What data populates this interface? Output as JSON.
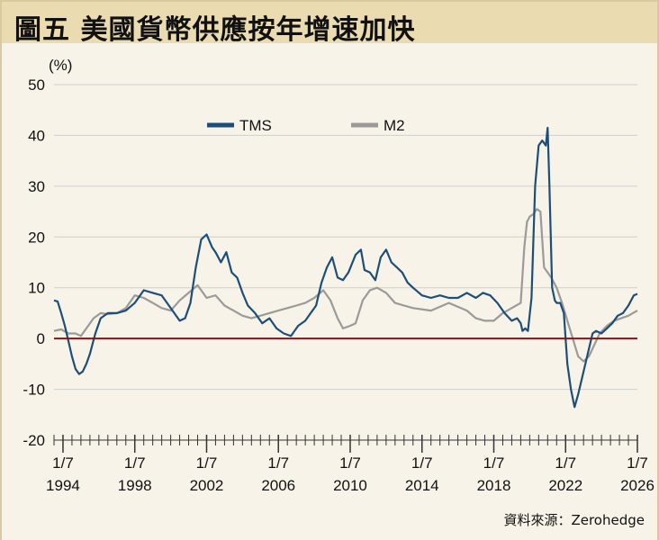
{
  "title": "圖五 美國貨幣供應按年增速加快",
  "unit_label": "(%)",
  "source": "資料來源：Zerohedge",
  "colors": {
    "tms": "#1d4e79",
    "m2": "#9a9a9a",
    "zero_line": "#7a1a1a",
    "background": "#f7f3e8",
    "title_bg": "#eadcb0"
  },
  "chart_data": {
    "type": "line",
    "ylabel": "(%)",
    "ylim": [
      -20,
      50
    ],
    "yticks": [
      -20,
      -10,
      0,
      10,
      20,
      30,
      40,
      50
    ],
    "xlim": [
      1994.0,
      2026.5
    ],
    "xtick_labels": [
      {
        "x": 1994.5,
        "top": "1/7",
        "bottom": "1994"
      },
      {
        "x": 1998.5,
        "top": "1/7",
        "bottom": "1998"
      },
      {
        "x": 2002.5,
        "top": "1/7",
        "bottom": "2002"
      },
      {
        "x": 2006.5,
        "top": "1/7",
        "bottom": "2006"
      },
      {
        "x": 2010.5,
        "top": "1/7",
        "bottom": "2010"
      },
      {
        "x": 2014.5,
        "top": "1/7",
        "bottom": "2014"
      },
      {
        "x": 2018.5,
        "top": "1/7",
        "bottom": "2018"
      },
      {
        "x": 2022.5,
        "top": "1/7",
        "bottom": "2022"
      },
      {
        "x": 2026.5,
        "top": "1/7",
        "bottom": "2026"
      }
    ],
    "legend": [
      "TMS",
      "M2"
    ],
    "series": [
      {
        "name": "TMS",
        "x": [
          1994.0,
          1994.2,
          1994.4,
          1994.6,
          1994.8,
          1995.0,
          1995.2,
          1995.4,
          1995.6,
          1995.8,
          1996.0,
          1996.3,
          1996.6,
          1997.0,
          1997.5,
          1998.0,
          1998.5,
          1999.0,
          1999.5,
          2000.0,
          2000.5,
          2001.0,
          2001.3,
          2001.6,
          2001.9,
          2002.2,
          2002.5,
          2002.8,
          2003.0,
          2003.3,
          2003.6,
          2003.9,
          2004.2,
          2004.5,
          2004.8,
          2005.2,
          2005.6,
          2006.0,
          2006.4,
          2006.8,
          2007.2,
          2007.6,
          2008.0,
          2008.3,
          2008.6,
          2008.9,
          2009.2,
          2009.5,
          2009.8,
          2010.1,
          2010.4,
          2010.8,
          2011.1,
          2011.3,
          2011.6,
          2011.9,
          2012.2,
          2012.5,
          2012.8,
          2013.1,
          2013.4,
          2013.7,
          2014.0,
          2014.5,
          2015.0,
          2015.5,
          2016.0,
          2016.5,
          2017.0,
          2017.5,
          2017.9,
          2018.3,
          2018.7,
          2019.1,
          2019.5,
          2019.8,
          2020.0,
          2020.1,
          2020.25,
          2020.4,
          2020.6,
          2020.8,
          2021.0,
          2021.2,
          2021.4,
          2021.5,
          2021.6,
          2021.75,
          2021.9,
          2022.0,
          2022.2,
          2022.4,
          2022.6,
          2022.8,
          2023.0,
          2023.2,
          2023.4,
          2023.6,
          2023.8,
          2024.0,
          2024.2,
          2024.5,
          2024.8,
          2025.1,
          2025.4,
          2025.7,
          2026.0,
          2026.3,
          2026.5
        ],
        "y": [
          7.5,
          7.3,
          5.0,
          2.5,
          -0.5,
          -3.5,
          -6.0,
          -7.0,
          -6.5,
          -5.0,
          -3.0,
          1.0,
          4.0,
          5.0,
          5.0,
          5.5,
          7.0,
          9.5,
          9.0,
          8.5,
          6.0,
          3.5,
          4.0,
          7.0,
          14.0,
          19.5,
          20.5,
          18.0,
          17.0,
          15.0,
          17.0,
          13.0,
          12.0,
          9.0,
          6.5,
          5.0,
          3.0,
          4.0,
          2.0,
          1.0,
          0.5,
          2.5,
          3.5,
          5.0,
          6.5,
          11.0,
          14.0,
          16.0,
          12.0,
          11.5,
          13.0,
          16.5,
          17.5,
          13.5,
          13.0,
          11.5,
          16.0,
          17.5,
          15.0,
          14.0,
          13.0,
          11.0,
          10.0,
          8.5,
          8.0,
          8.5,
          8.0,
          8.0,
          9.0,
          8.0,
          9.0,
          8.5,
          7.0,
          5.0,
          3.5,
          4.0,
          3.0,
          1.5,
          2.0,
          1.5,
          8.0,
          30.0,
          38.0,
          39.0,
          38.0,
          41.5,
          30.0,
          10.0,
          7.5,
          7.0,
          7.0,
          5.0,
          -5.0,
          -10.0,
          -13.5,
          -11.0,
          -8.0,
          -5.0,
          -2.0,
          1.0,
          1.5,
          1.0,
          2.0,
          3.0,
          4.5,
          5.0,
          6.5,
          8.5,
          8.8
        ]
      },
      {
        "name": "M2",
        "x": [
          1994.0,
          1994.4,
          1994.8,
          1995.2,
          1995.5,
          1995.8,
          1996.2,
          1996.6,
          1997.0,
          1997.5,
          1998.0,
          1998.5,
          1999.0,
          1999.5,
          2000.0,
          2000.5,
          2001.0,
          2001.5,
          2002.0,
          2002.5,
          2003.0,
          2003.5,
          2004.0,
          2004.5,
          2005.0,
          2005.5,
          2006.0,
          2006.5,
          2007.0,
          2007.5,
          2008.0,
          2008.5,
          2009.0,
          2009.4,
          2009.8,
          2010.1,
          2010.5,
          2010.8,
          2011.2,
          2011.6,
          2012.0,
          2012.5,
          2013.0,
          2013.5,
          2014.0,
          2015.0,
          2016.0,
          2017.0,
          2017.5,
          2018.0,
          2018.5,
          2019.0,
          2019.5,
          2020.0,
          2020.2,
          2020.35,
          2020.5,
          2020.7,
          2020.9,
          2021.1,
          2021.3,
          2021.5,
          2021.7,
          2022.0,
          2022.3,
          2022.6,
          2022.9,
          2023.2,
          2023.5,
          2023.8,
          2024.0,
          2024.4,
          2024.8,
          2025.2,
          2025.6,
          2026.0,
          2026.5
        ],
        "y": [
          1.5,
          1.8,
          1.0,
          1.0,
          0.5,
          2.0,
          4.0,
          5.0,
          4.8,
          5.0,
          6.0,
          8.5,
          8.0,
          7.0,
          6.0,
          5.5,
          7.5,
          9.0,
          10.5,
          8.0,
          8.5,
          6.5,
          5.5,
          4.5,
          4.0,
          4.5,
          5.0,
          5.5,
          6.0,
          6.5,
          7.0,
          8.0,
          9.5,
          7.5,
          4.0,
          2.0,
          2.5,
          3.0,
          7.5,
          9.5,
          10.0,
          9.0,
          7.0,
          6.5,
          6.0,
          5.5,
          7.0,
          5.5,
          4.0,
          3.5,
          3.5,
          5.0,
          6.0,
          7.0,
          18.0,
          23.0,
          24.0,
          24.5,
          25.5,
          25.0,
          14.0,
          13.0,
          12.0,
          10.0,
          7.0,
          3.5,
          0.0,
          -3.5,
          -4.5,
          -3.5,
          -2.0,
          1.0,
          2.5,
          3.5,
          4.0,
          4.5,
          5.5
        ]
      }
    ]
  }
}
